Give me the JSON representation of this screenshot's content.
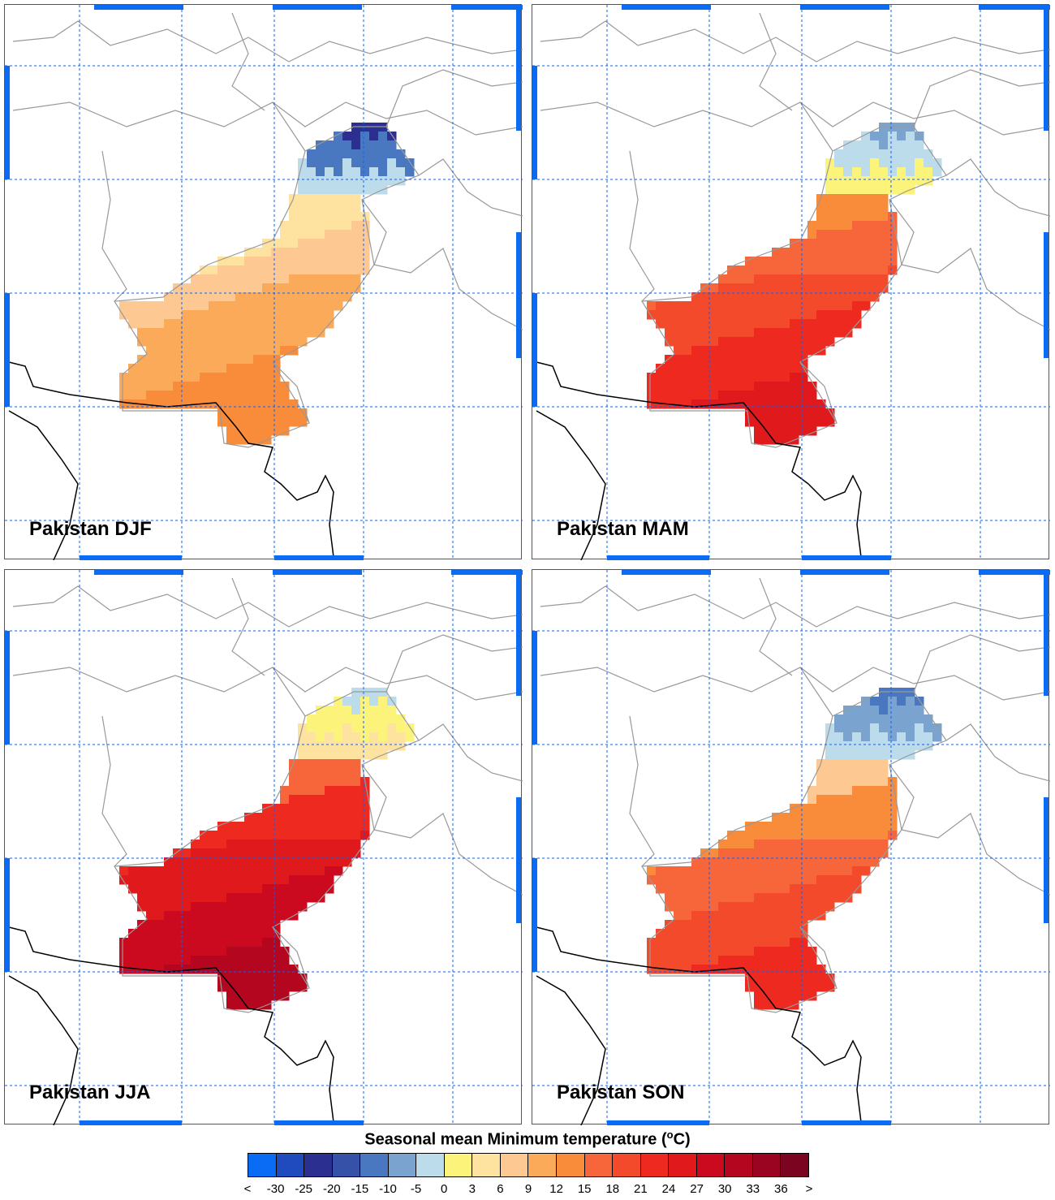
{
  "panels": [
    {
      "title": "Pakistan DJF",
      "season": "DJF"
    },
    {
      "title": "Pakistan MAM",
      "season": "MAM"
    },
    {
      "title": "Pakistan JJA",
      "season": "JJA"
    },
    {
      "title": "Pakistan SON",
      "season": "SON"
    }
  ],
  "legend": {
    "title": "Seasonal mean Minimum temperature (",
    "unit_sup": "o",
    "unit_tail": "C)",
    "labels": [
      "<",
      "-30",
      "-25",
      "-20",
      "-15",
      "-10",
      "-5",
      "0",
      "3",
      "6",
      "9",
      "12",
      "15",
      "18",
      "21",
      "24",
      "27",
      "30",
      "33",
      "36",
      ">"
    ],
    "colors": [
      "#0a6cf5",
      "#1f4bbf",
      "#2b2f8f",
      "#3552a8",
      "#4a78c0",
      "#7aa3d0",
      "#bcdceb",
      "#fbf37a",
      "#fde2a0",
      "#fdc892",
      "#fbaa5a",
      "#f98c3a",
      "#f7663a",
      "#f24a2b",
      "#ee2a20",
      "#e01a1c",
      "#cb0a1f",
      "#b4061f",
      "#9a0420",
      "#7b0521"
    ]
  },
  "colors": {
    "grid": "#1a5fe0",
    "frame": "#0a6cf5",
    "border": "#999999",
    "coast": "#000000"
  }
}
